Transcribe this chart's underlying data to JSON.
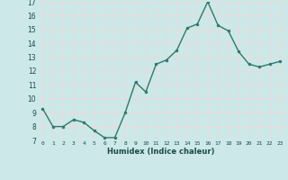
{
  "x": [
    0,
    1,
    2,
    3,
    4,
    5,
    6,
    7,
    8,
    9,
    10,
    11,
    12,
    13,
    14,
    15,
    16,
    17,
    18,
    19,
    20,
    21,
    22,
    23
  ],
  "y": [
    9.3,
    8.0,
    8.0,
    8.5,
    8.3,
    7.7,
    7.2,
    7.2,
    9.0,
    11.2,
    10.5,
    12.5,
    12.8,
    13.5,
    15.1,
    15.4,
    17.0,
    15.3,
    14.9,
    13.4,
    12.5,
    12.3,
    12.5,
    12.7
  ],
  "xlabel": "Humidex (Indice chaleur)",
  "ylim": [
    7,
    17
  ],
  "xlim": [
    -0.5,
    23.5
  ],
  "yticks": [
    7,
    8,
    9,
    10,
    11,
    12,
    13,
    14,
    15,
    16,
    17
  ],
  "xticks": [
    0,
    1,
    2,
    3,
    4,
    5,
    6,
    7,
    8,
    9,
    10,
    11,
    12,
    13,
    14,
    15,
    16,
    17,
    18,
    19,
    20,
    21,
    22,
    23
  ],
  "line_color": "#2d7a6b",
  "marker_color": "#2d7a6b",
  "bg_color": "#cce8e8",
  "grid_color": "#f0d8d8",
  "xlabel_color": "#1a4a4a",
  "tick_color": "#1a4a4a"
}
